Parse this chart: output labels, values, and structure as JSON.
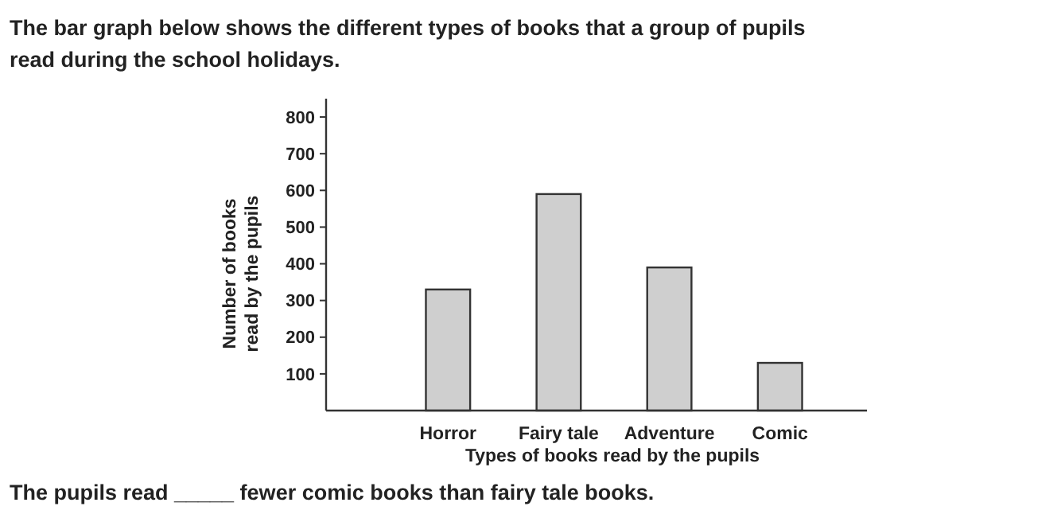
{
  "chart_data": {
    "type": "bar",
    "title": "The bar graph below shows the different types of books that a group of pupils read during the school holidays.",
    "categories": [
      "Horror",
      "Fairy tale",
      "Adventure",
      "Comic"
    ],
    "values": [
      330,
      590,
      390,
      130
    ],
    "color": "#cfcfcf",
    "xlabel": "Types of books read by the pupils",
    "ylabel": "Number of books read by the pupils",
    "ylim": [
      0,
      850
    ],
    "yticks": [
      100,
      200,
      300,
      400,
      500,
      600,
      700,
      800
    ],
    "annotations": [
      "The pupils read _____ fewer comic books than fairy tale books."
    ]
  }
}
